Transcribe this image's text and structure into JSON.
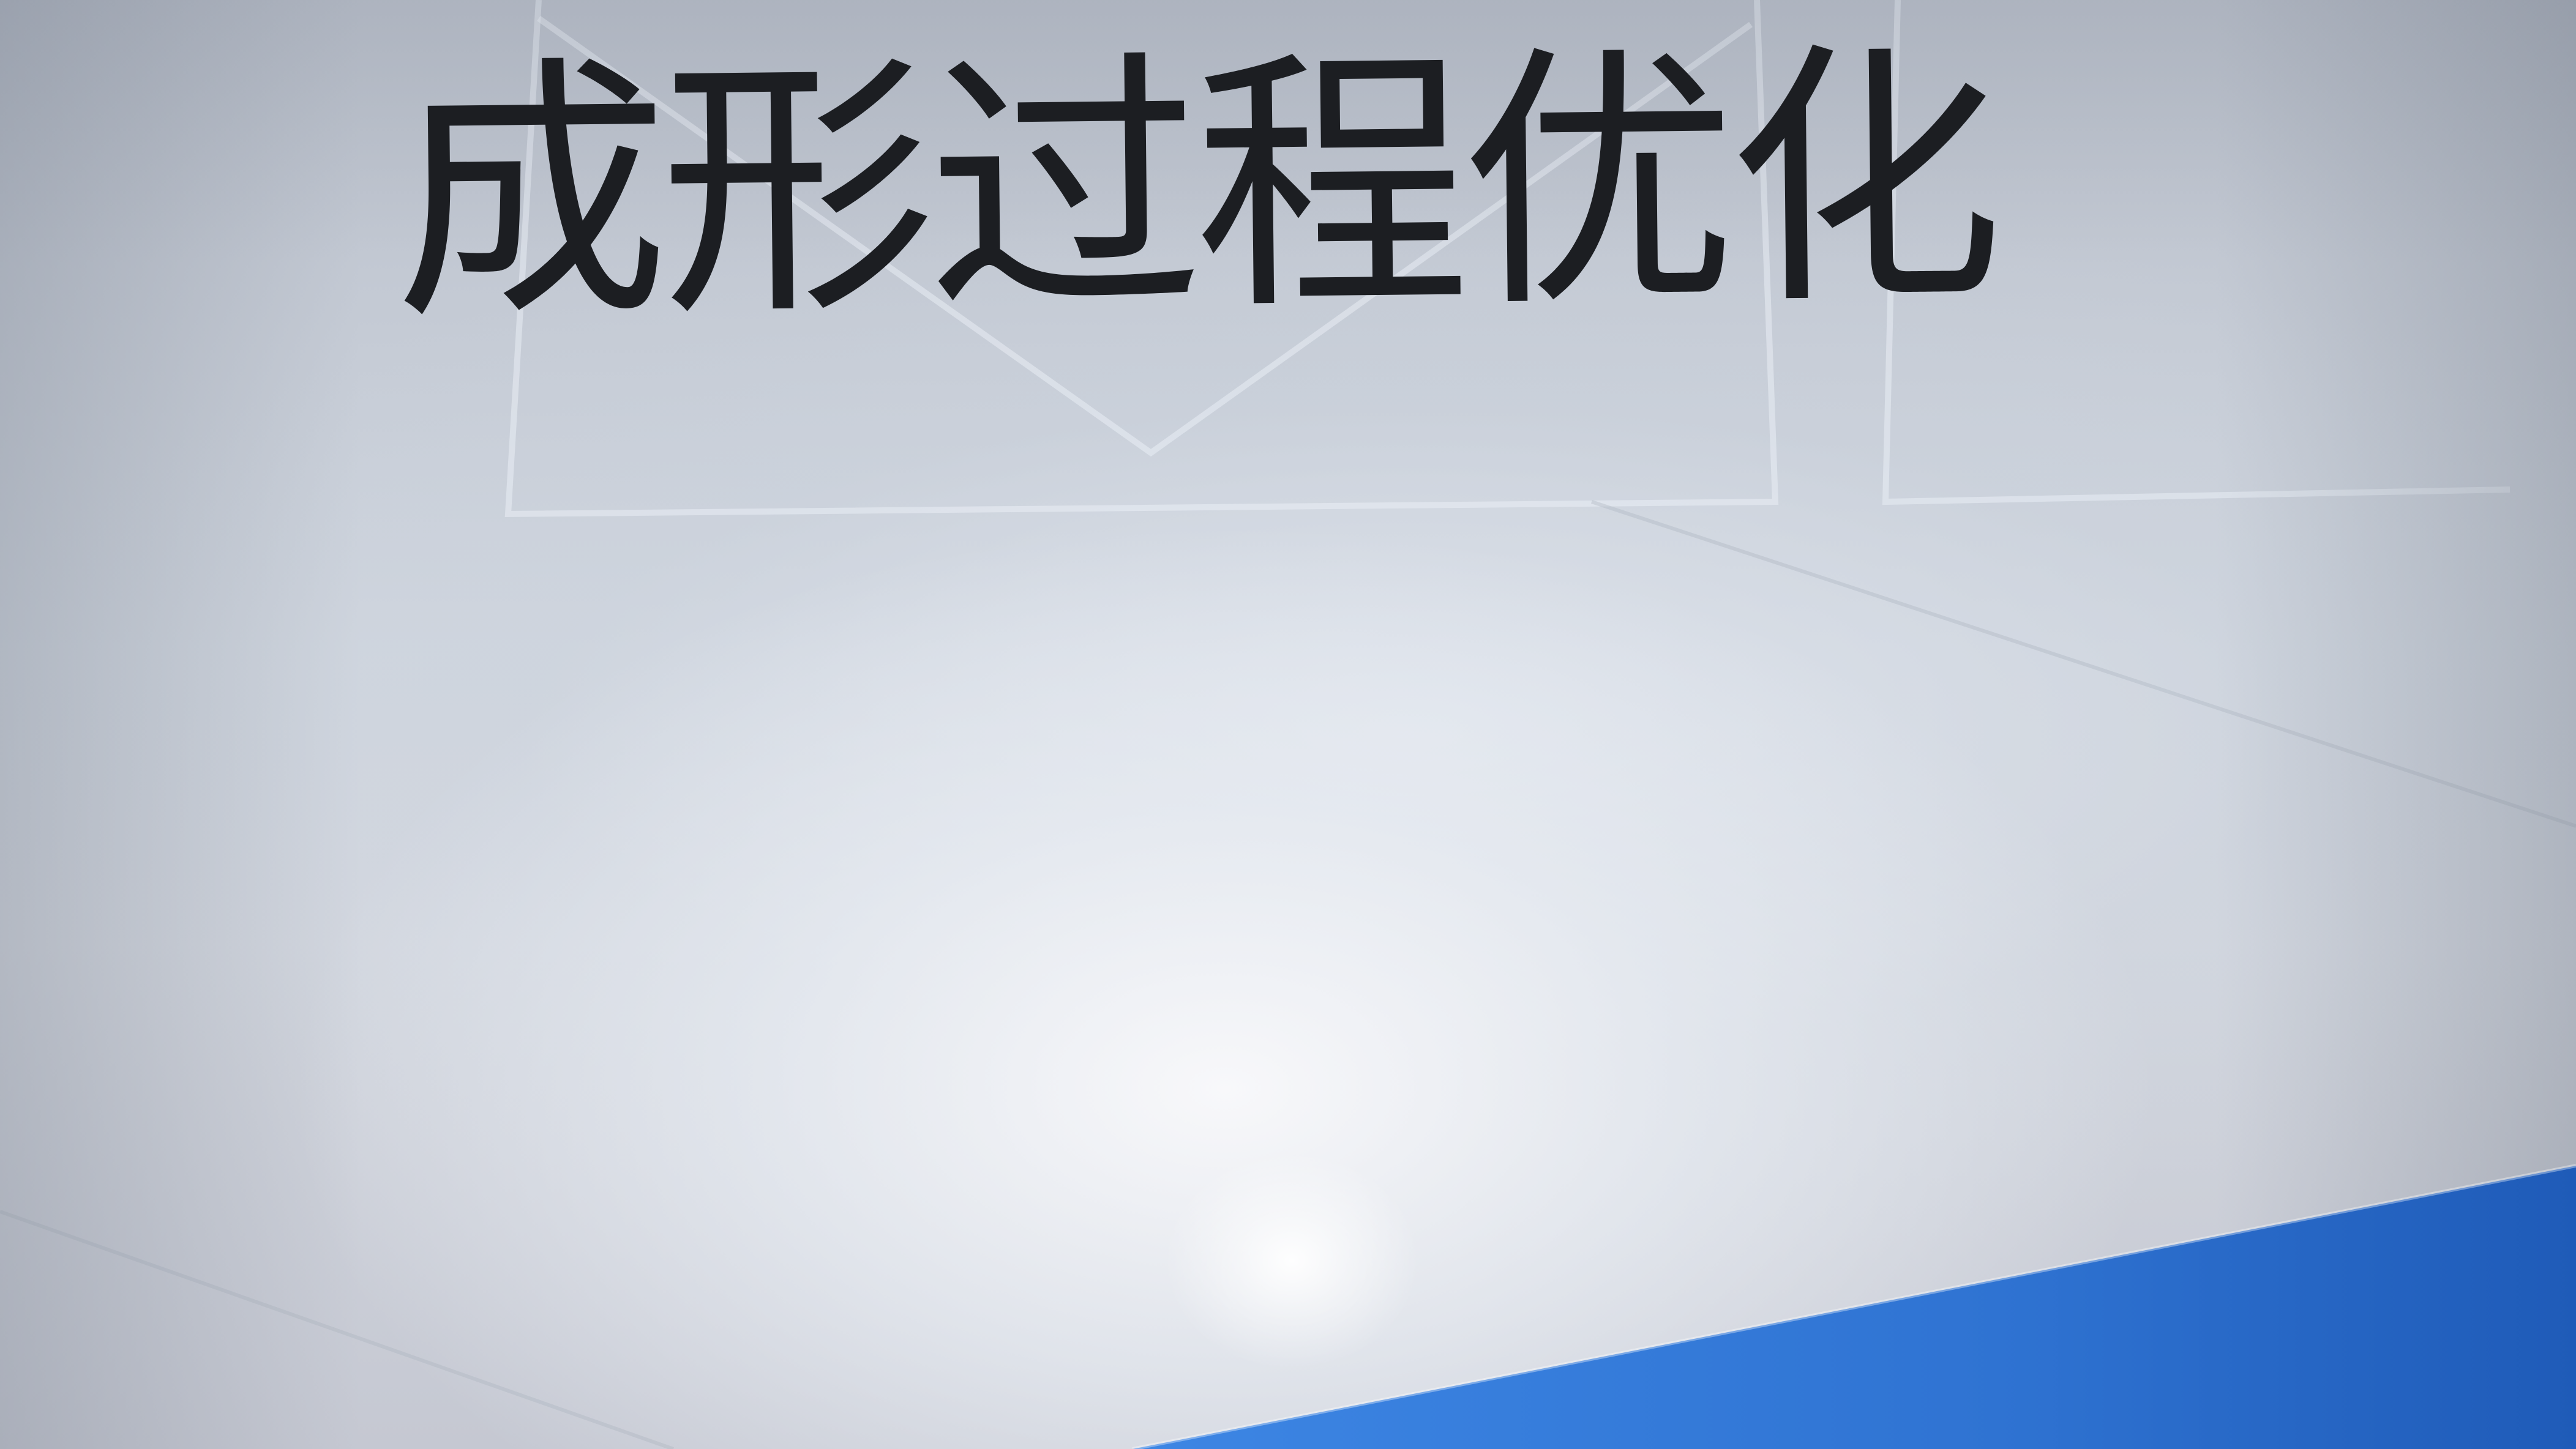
{
  "headline": {
    "text": "成形过程优化"
  },
  "colors": {
    "paper": "#cdd3dc",
    "text": "#1c1e22",
    "band": "#2f73d2"
  }
}
